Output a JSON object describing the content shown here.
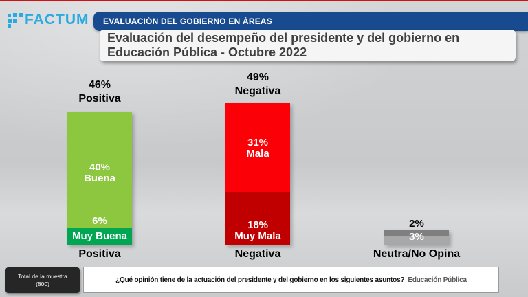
{
  "page": {
    "top_line_color": "#d01217"
  },
  "header": {
    "logo_text": "FACTUM",
    "logo_color": "#29abe2",
    "banner_label": "EVALUACIÓN DEL GOBIERNO EN ÁREAS",
    "banner_color": "#174a8e",
    "title_line1": "Evaluación del desempeño del presidente y del gobierno en",
    "title_line2": "Educación Pública - Octubre 2022"
  },
  "chart_data": {
    "type": "bar",
    "stacked": true,
    "unit": "%",
    "title": "Evaluación del desempeño del presidente y del gobierno en Educación Pública - Octubre 2022",
    "categories": [
      "Positiva",
      "Negativa",
      "Neutra/No Opina"
    ],
    "value_label_color": "#ffffff",
    "axis": "none",
    "legend": "none",
    "groups": [
      {
        "below_label": "Positiva",
        "total": 46,
        "total_label": "46%",
        "total_name": "Positiva",
        "segments": [
          {
            "name": "Buena",
            "value": 40,
            "value_label": "40%",
            "color": "#8dc63f"
          },
          {
            "name": "Muy Buena",
            "value": 6,
            "value_label": "6%",
            "color": "#00a651"
          }
        ]
      },
      {
        "below_label": "Negativa",
        "total": 49,
        "total_label": "49%",
        "total_name": "Negativa",
        "segments": [
          {
            "name": "Mala",
            "value": 31,
            "value_label": "31%",
            "color": "#fb0007"
          },
          {
            "name": "Muy Mala",
            "value": 18,
            "value_label": "18%",
            "color": "#c00000"
          }
        ]
      },
      {
        "below_label": "Neutra/No Opina",
        "total": 5,
        "segments": [
          {
            "name": "Neutra",
            "value": 2,
            "value_label": "2%",
            "color": "#7f7f7f"
          },
          {
            "name": "No opina",
            "value": 3,
            "value_label": "3%",
            "color": "#a8a8a8"
          }
        ]
      }
    ]
  },
  "footer": {
    "sample_line1": "Total de la muestra",
    "sample_line2": "(800)",
    "question": "¿Qué opinión tiene de la actuación del presidente y del gobierno en los siguientes asuntos?",
    "question_topic": "Educación Pública",
    "topic_color": "#595959"
  }
}
